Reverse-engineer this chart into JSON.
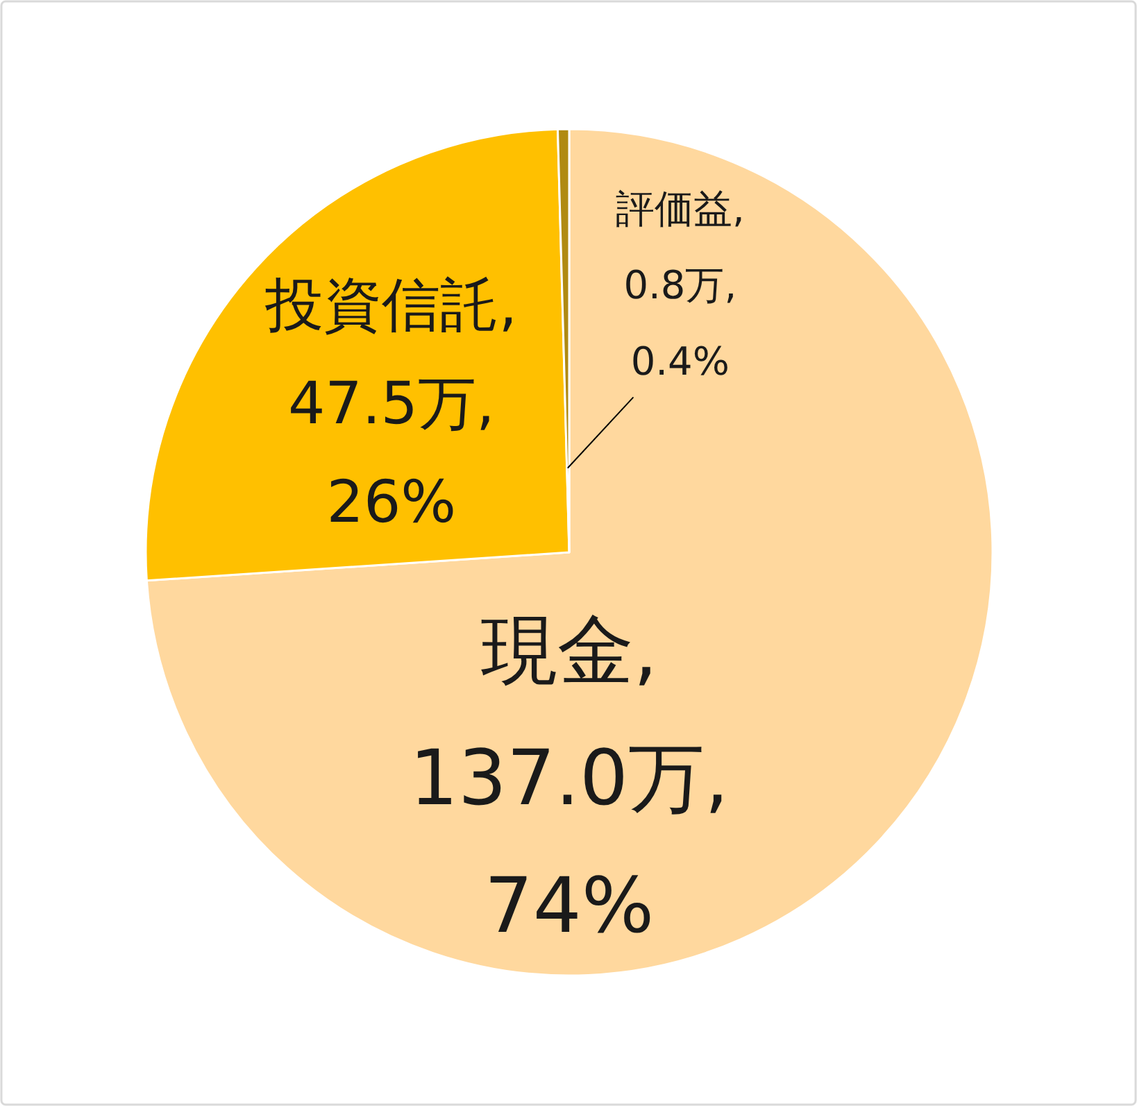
{
  "chart_data": {
    "type": "pie",
    "categories": [
      "現金",
      "投資信託",
      "評価益"
    ],
    "values": [
      137.0,
      47.5,
      0.8
    ],
    "colors": [
      "#ffd89e",
      "#ffc000",
      "#b08a12"
    ],
    "value_labels": [
      ",\n137.0万,\n74%",
      ",\n47.5万,\n26%",
      ",\n0.8万,\n0.4%"
    ]
  }
}
